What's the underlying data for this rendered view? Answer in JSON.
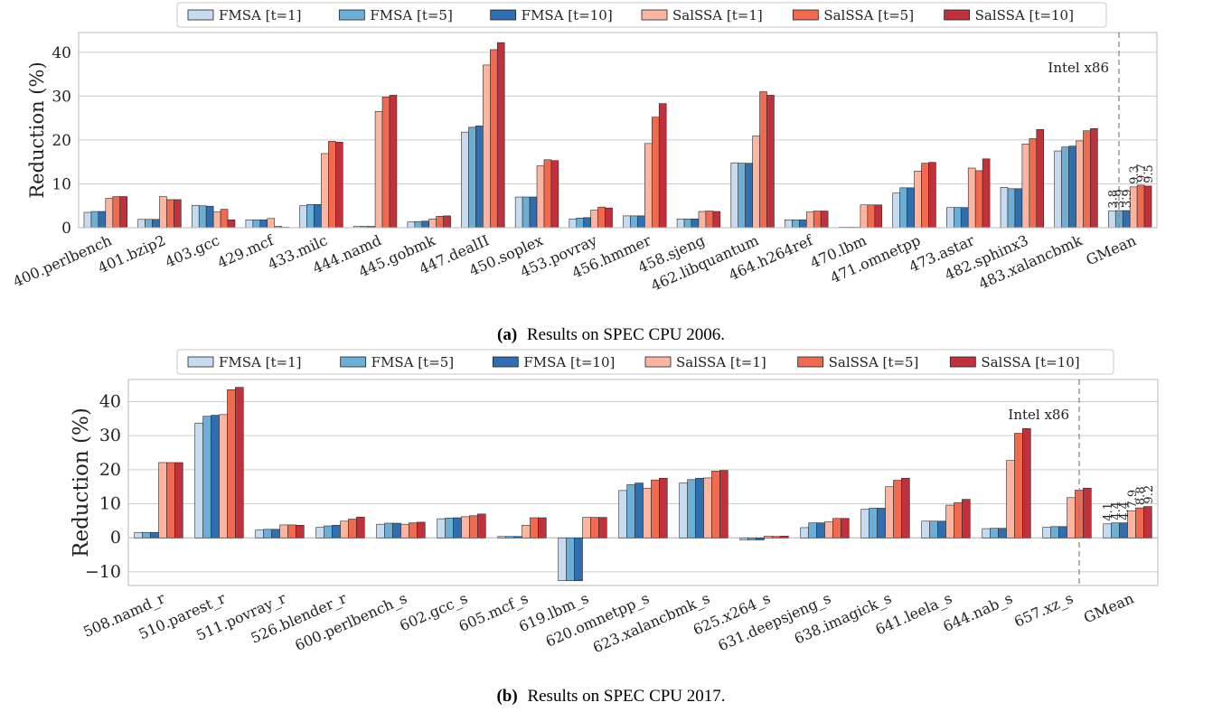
{
  "colors": {
    "series": [
      "#c6dbef",
      "#6baed6",
      "#2f6eaf",
      "#fcb5a0",
      "#f06a4f",
      "#c0313b"
    ],
    "grid": "#cccccc",
    "divider": "#888888"
  },
  "chart_data": [
    {
      "type": "bar",
      "caption_label": "(a)",
      "caption_text": "Results on SPEC CPU 2006.",
      "ylabel": "Reduction (%)",
      "ylim": [
        0,
        44.5
      ],
      "yticks": [
        0,
        10,
        20,
        30,
        40
      ],
      "annotation": "Intel x86",
      "grid": true,
      "legend_position": "top-center",
      "categories": [
        "400.perlbench",
        "401.bzip2",
        "403.gcc",
        "429.mcf",
        "433.milc",
        "444.namd",
        "445.gobmk",
        "447.dealII",
        "450.soplex",
        "453.povray",
        "456.hmmer",
        "458.sjeng",
        "462.libquantum",
        "464.h264ref",
        "470.lbm",
        "471.omnetpp",
        "473.astar",
        "482.sphinx3",
        "483.xalancbmk",
        "GMean"
      ],
      "series": [
        {
          "name": "FMSA [t=1]",
          "values": [
            3.5,
            1.9,
            5.1,
            1.8,
            5.0,
            0.3,
            1.3,
            21.8,
            7.0,
            2.0,
            2.7,
            2.0,
            14.8,
            1.8,
            0.1,
            7.9,
            4.6,
            9.2,
            17.5,
            3.8
          ]
        },
        {
          "name": "FMSA [t=5]",
          "values": [
            3.7,
            1.9,
            5.0,
            1.8,
            5.3,
            0.3,
            1.4,
            22.9,
            7.0,
            2.2,
            2.7,
            2.0,
            14.7,
            1.8,
            0.1,
            9.1,
            4.6,
            8.9,
            18.4,
            3.9
          ]
        },
        {
          "name": "FMSA [t=10]",
          "values": [
            3.7,
            1.9,
            4.9,
            1.8,
            5.3,
            0.3,
            1.5,
            23.2,
            7.0,
            2.3,
            2.7,
            2.0,
            14.7,
            1.8,
            0.1,
            9.1,
            4.6,
            8.9,
            18.6,
            3.9
          ]
        },
        {
          "name": "SalSSA [t=1]",
          "values": [
            6.7,
            7.1,
            3.6,
            2.1,
            16.9,
            26.5,
            2.0,
            37.1,
            14.1,
            4.0,
            19.2,
            3.7,
            20.9,
            3.6,
            5.2,
            12.9,
            13.6,
            19.1,
            19.8,
            9.3
          ]
        },
        {
          "name": "SalSSA [t=5]",
          "values": [
            7.1,
            6.4,
            4.2,
            0.3,
            19.7,
            29.8,
            2.6,
            40.6,
            15.5,
            4.7,
            25.2,
            3.8,
            31.0,
            3.8,
            5.2,
            14.7,
            13.0,
            20.3,
            22.1,
            9.7
          ]
        },
        {
          "name": "SalSSA [t=10]",
          "values": [
            7.1,
            6.4,
            1.8,
            0.1,
            19.5,
            30.2,
            2.7,
            42.2,
            15.3,
            4.5,
            28.3,
            3.7,
            30.2,
            3.8,
            5.2,
            14.9,
            15.7,
            22.4,
            22.6,
            9.5
          ]
        }
      ],
      "gmean_labels": [
        "3.8",
        "3.9",
        "3.9",
        "9.3",
        "9.7",
        "9.5"
      ]
    },
    {
      "type": "bar",
      "caption_label": "(b)",
      "caption_text": "Results on SPEC CPU 2017.",
      "ylabel": "Reduction (%)",
      "ylim": [
        -14,
        46.5
      ],
      "yticks": [
        -10,
        0,
        10,
        20,
        30,
        40
      ],
      "annotation": "Intel x86",
      "grid": true,
      "legend_position": "top-center",
      "categories": [
        "508.namd_r",
        "510.parest_r",
        "511.povray_r",
        "526.blender_r",
        "600.perlbench_s",
        "602.gcc_s",
        "605.mcf_s",
        "619.lbm_s",
        "620.omnetpp_s",
        "623.xalancbmk_s",
        "625.x264_s",
        "631.deepsjeng_s",
        "638.imagick_s",
        "641.leela_s",
        "644.nab_s",
        "657.xz_s",
        "GMean"
      ],
      "series": [
        {
          "name": "FMSA [t=1]",
          "values": [
            1.6,
            33.7,
            2.3,
            3.1,
            4.0,
            5.6,
            0.4,
            -12.6,
            13.9,
            16.1,
            -0.6,
            3.0,
            8.4,
            4.9,
            2.7,
            3.1,
            4.1
          ]
        },
        {
          "name": "FMSA [t=5]",
          "values": [
            1.6,
            35.7,
            2.5,
            3.5,
            4.3,
            5.8,
            0.4,
            -12.6,
            15.6,
            17.1,
            -0.6,
            4.4,
            8.7,
            4.9,
            2.8,
            3.3,
            4.4
          ]
        },
        {
          "name": "FMSA [t=10]",
          "values": [
            1.6,
            36.0,
            2.5,
            3.7,
            4.3,
            5.9,
            0.4,
            -12.6,
            16.1,
            17.5,
            -0.6,
            4.4,
            8.7,
            4.9,
            2.8,
            3.3,
            4.4
          ]
        },
        {
          "name": "SalSSA [t=1]",
          "values": [
            22.1,
            36.2,
            3.8,
            4.9,
            4.0,
            6.2,
            3.7,
            6.0,
            14.6,
            17.6,
            0.5,
            4.7,
            15.0,
            9.6,
            22.7,
            11.8,
            7.9
          ]
        },
        {
          "name": "SalSSA [t=5]",
          "values": [
            22.1,
            43.5,
            3.8,
            5.5,
            4.4,
            6.5,
            5.9,
            6.0,
            17.0,
            19.6,
            0.4,
            5.7,
            16.9,
            10.3,
            30.7,
            14.0,
            8.8
          ]
        },
        {
          "name": "SalSSA [t=10]",
          "values": [
            22.1,
            44.2,
            3.7,
            6.1,
            4.6,
            7.0,
            5.9,
            6.0,
            17.5,
            19.8,
            0.5,
            5.7,
            17.5,
            11.3,
            32.1,
            14.6,
            9.2
          ]
        }
      ],
      "gmean_labels": [
        "4.1",
        "4.4",
        "4.4",
        "7.9",
        "8.8",
        "9.2"
      ]
    }
  ]
}
